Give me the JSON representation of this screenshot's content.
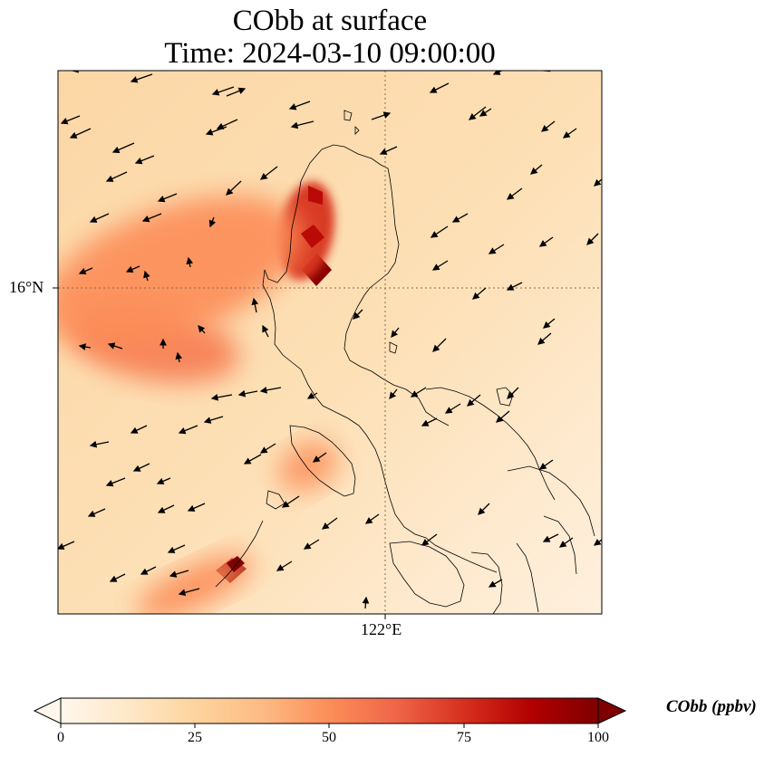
{
  "title": "CObb at surface",
  "subtitle": "Time: 2024-03-10 09:00:00",
  "map": {
    "lat_tick_label": "16°N",
    "lon_tick_label": "122°E",
    "gridline_style": "dotted",
    "field": "CObb",
    "overlay": "wind vectors",
    "coastlines": true
  },
  "colorbar": {
    "label": "CObb (ppbv)",
    "min": 0,
    "max": 100,
    "ticks": [
      "0",
      "25",
      "50",
      "75",
      "100"
    ],
    "extend": "both",
    "colormap": "OrRd",
    "colors": [
      "#fff7ec",
      "#fee8c8",
      "#fdd49e",
      "#fdbb84",
      "#fc8d59",
      "#ef6548",
      "#d7301f",
      "#b30000",
      "#7f0000"
    ]
  },
  "plumes": [
    {
      "name": "northern-plume-core",
      "value": 98
    },
    {
      "name": "northern-plume-upper",
      "value": 75
    },
    {
      "name": "western-plume",
      "value": 55
    },
    {
      "name": "western-outflow",
      "value": 50
    },
    {
      "name": "central-plume",
      "value": 48
    },
    {
      "name": "southern-plume-core",
      "value": 96
    },
    {
      "name": "southern-plume-tail",
      "value": 50
    }
  ]
}
